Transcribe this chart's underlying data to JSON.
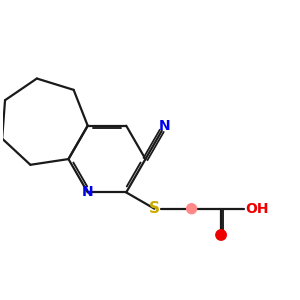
{
  "bg_color": "#ffffff",
  "bond_color": "#1a1a1a",
  "N_color": "#0000ee",
  "S_color": "#ccaa00",
  "O_color": "#ee0000",
  "C_highlight_color": "#ff8888",
  "line_width": 1.6,
  "font_size_atoms": 10,
  "fig_width": 3.0,
  "fig_height": 3.0,
  "dpi": 100,
  "xlim": [
    0.0,
    6.5
  ],
  "ylim": [
    0.5,
    5.5
  ]
}
